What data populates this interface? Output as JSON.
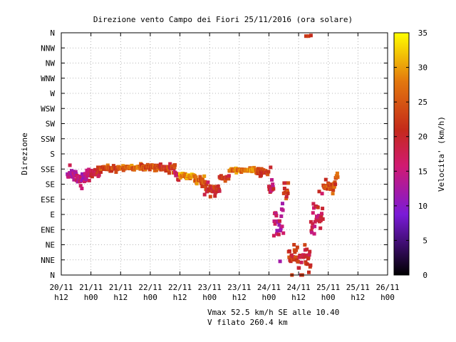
{
  "chart_data": {
    "type": "scatter",
    "title": "Direzione vento Campo dei Fiori 25/11/2016 (ora solare)",
    "ylabel": "Direzione",
    "colorbar_label": "Velocita' (km/h)",
    "y_categories": [
      "N",
      "NNE",
      "NE",
      "ENE",
      "E",
      "ESE",
      "SE",
      "SSE",
      "S",
      "SSW",
      "SW",
      "WSW",
      "W",
      "WNW",
      "NW",
      "NNW",
      "N"
    ],
    "ylim": [
      0,
      360
    ],
    "x_ticks": [
      {
        "line1": "20/11",
        "line2": "h12"
      },
      {
        "line1": "21/11",
        "line2": "h00"
      },
      {
        "line1": "21/11",
        "line2": "h12"
      },
      {
        "line1": "22/11",
        "line2": "h00"
      },
      {
        "line1": "22/11",
        "line2": "h12"
      },
      {
        "line1": "23/11",
        "line2": "h00"
      },
      {
        "line1": "23/11",
        "line2": "h12"
      },
      {
        "line1": "24/11",
        "line2": "h00"
      },
      {
        "line1": "24/11",
        "line2": "h12"
      },
      {
        "line1": "25/11",
        "line2": "h00"
      },
      {
        "line1": "25/11",
        "line2": "h12"
      },
      {
        "line1": "26/11",
        "line2": "h00"
      }
    ],
    "xlim_hours": [
      0,
      132
    ],
    "colorbar_ticks": [
      0,
      5,
      10,
      15,
      20,
      25,
      30,
      35
    ],
    "colorbar_range": [
      0,
      35
    ],
    "grid": true,
    "series": [
      {
        "segments": [
          [
            2.5,
            6,
            150,
            10,
            0.22,
            14
          ],
          [
            6,
            8.5,
            143,
            10,
            0.4,
            15
          ],
          [
            8.5,
            12,
            148,
            6,
            0.55,
            14
          ],
          [
            12,
            16,
            152,
            6,
            0.4,
            20
          ],
          [
            16,
            24,
            159,
            4,
            0.3,
            24
          ],
          [
            24,
            32,
            160,
            3,
            0.2,
            26
          ],
          [
            32,
            40,
            161,
            4,
            0.3,
            24
          ],
          [
            40,
            46,
            159,
            5,
            0.3,
            22
          ],
          [
            46,
            48,
            150,
            6,
            0.3,
            18
          ],
          [
            48,
            54,
            147,
            3,
            0.2,
            29
          ],
          [
            54,
            58,
            140,
            6,
            0.2,
            26
          ],
          [
            58,
            64,
            128,
            8,
            0.3,
            21
          ],
          [
            64,
            68,
            145,
            5,
            0.3,
            22
          ],
          [
            68,
            75,
            156,
            3,
            0.2,
            27
          ],
          [
            75,
            79,
            156,
            3,
            0.3,
            29
          ],
          [
            79,
            84,
            153,
            4,
            0.3,
            23
          ],
          [
            84,
            86,
            135,
            18,
            0.4,
            17
          ],
          [
            86,
            90,
            80,
            40,
            0.3,
            15
          ],
          [
            90,
            92,
            125,
            8,
            0.3,
            23
          ],
          [
            92,
            96,
            30,
            25,
            0.3,
            22
          ],
          [
            96,
            101,
            20,
            20,
            0.25,
            20
          ],
          [
            101,
            103,
            72,
            24,
            0.4,
            16
          ],
          [
            103,
            106,
            90,
            25,
            0.4,
            18
          ],
          [
            106,
            111,
            132,
            9,
            0.3,
            24
          ],
          [
            111,
            112,
            145,
            5,
            0.3,
            27
          ]
        ]
      }
    ],
    "wrap_points": [
      [
        99,
        355,
        22
      ],
      [
        100,
        355,
        23
      ],
      [
        101,
        356,
        21
      ]
    ],
    "stats_line1": "Vmax 52.5 km/h SE alle 10.40",
    "stats_line2": "V filato 260.4 km"
  }
}
